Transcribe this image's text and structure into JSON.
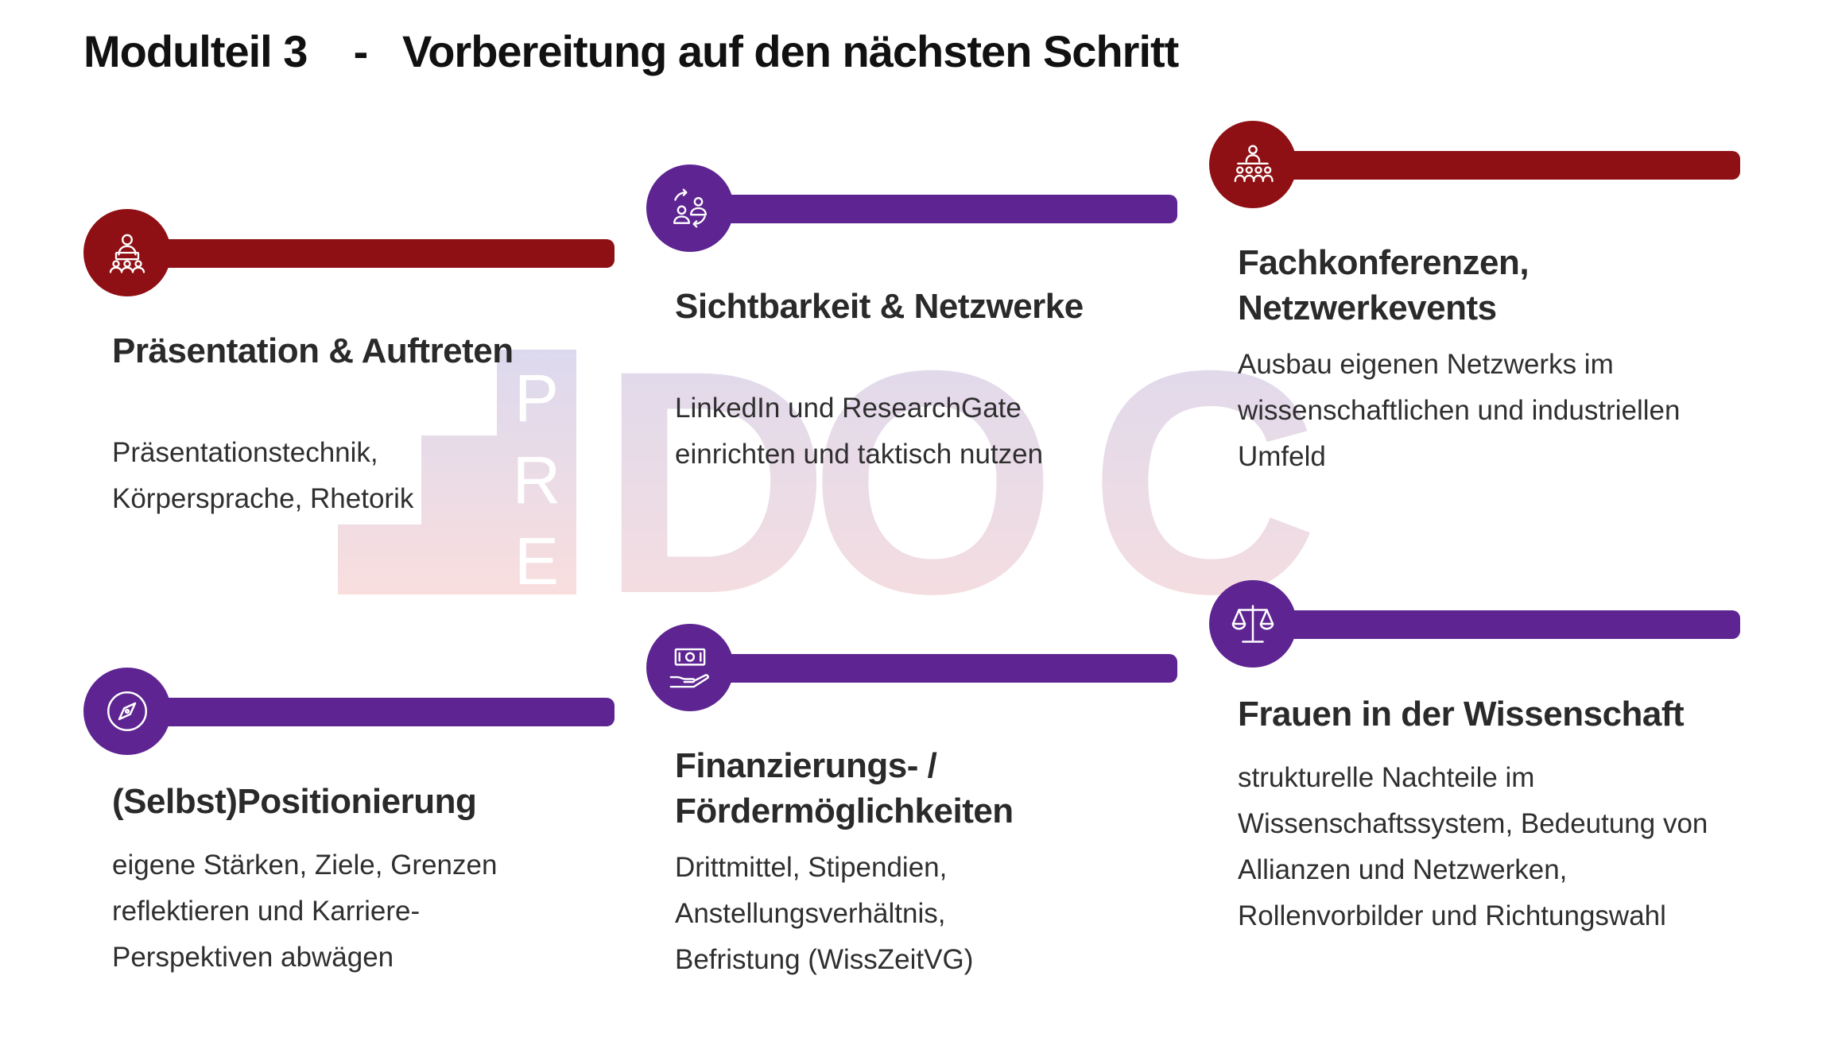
{
  "title": "Modulteil 3    -   Vorbereitung auf den nächsten Schritt",
  "watermark": {
    "vertical": [
      "P",
      "R",
      "E"
    ],
    "letters": [
      "D",
      "O",
      "C"
    ]
  },
  "colors": {
    "red": "#8f1014",
    "purple": "#5e2592"
  },
  "cards": [
    {
      "icon": "presentation-speaker-icon",
      "color": "red",
      "heading": "Präsentation & Auftreten",
      "text": "Präsentationstechnik, Körpersprache, Rhetorik"
    },
    {
      "icon": "network-people-exchange-icon",
      "color": "purple",
      "heading": "Sichtbarkeit & Netzwerke",
      "text": "LinkedIn und ResearchGate einrichten und taktisch nutzen"
    },
    {
      "icon": "conference-audience-icon",
      "color": "red",
      "heading": "Fachkonferenzen, Netzwerkevents",
      "text": "Ausbau eigenen Netzwerks im wissenschaftlichen und industriellen Umfeld"
    },
    {
      "icon": "compass-icon",
      "color": "purple",
      "heading": "(Selbst)Positionierung",
      "text": "eigene Stärken, Ziele, Grenzen reflektieren und Karriere-Perspektiven abwägen"
    },
    {
      "icon": "money-hand-icon",
      "color": "purple",
      "heading": "Finanzierungs- / Fördermöglichkeiten",
      "text": "Drittmittel, Stipendien, Anstellungsverhältnis, Befristung (WissZeitVG)"
    },
    {
      "icon": "scales-icon",
      "color": "purple",
      "heading": "Frauen in der Wissenschaft",
      "text": "strukturelle Nachteile im Wissenschaftssystem, Bedeutung von Allianzen und Netzwerken, Rollenvorbilder und Richtungswahl"
    }
  ]
}
